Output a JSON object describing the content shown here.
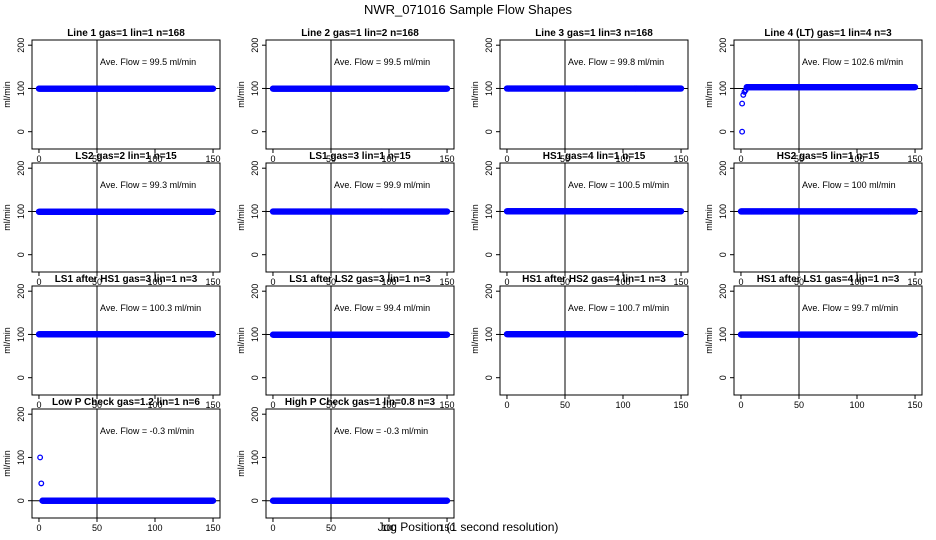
{
  "figure": {
    "title": "NWR_071016  Sample Flow Shapes",
    "xlabel": "Jog Position (1 second resolution)"
  },
  "colors": {
    "points": "#0000ff",
    "axis": "#000000",
    "background": "#ffffff"
  },
  "chart_data": [
    {
      "type": "scatter",
      "title": "Line 1 gas=1 lin=1 n=168",
      "ylabel": "ml/min",
      "annotation": "Ave. Flow = 99.5  ml/min",
      "xlim": [
        0,
        150
      ],
      "ylim": [
        0,
        200
      ],
      "xticks": [
        0,
        50,
        100,
        150
      ],
      "yticks": [
        0,
        100,
        200
      ],
      "vline": 50,
      "hline": 100,
      "x_range": [
        0,
        150
      ],
      "y_level": 99.5,
      "lead_points": []
    },
    {
      "type": "scatter",
      "title": "Line 2 gas=1 lin=2 n=168",
      "ylabel": "ml/min",
      "annotation": "Ave. Flow = 99.5  ml/min",
      "xlim": [
        0,
        150
      ],
      "ylim": [
        0,
        200
      ],
      "xticks": [
        0,
        50,
        100,
        150
      ],
      "yticks": [
        0,
        100,
        200
      ],
      "vline": 50,
      "hline": 100,
      "x_range": [
        0,
        150
      ],
      "y_level": 99.5,
      "lead_points": []
    },
    {
      "type": "scatter",
      "title": "Line 3 gas=1 lin=3 n=168",
      "ylabel": "ml/min",
      "annotation": "Ave. Flow = 99.8  ml/min",
      "xlim": [
        0,
        150
      ],
      "ylim": [
        0,
        200
      ],
      "xticks": [
        0,
        50,
        100,
        150
      ],
      "yticks": [
        0,
        100,
        200
      ],
      "vline": 50,
      "hline": 100,
      "x_range": [
        0,
        150
      ],
      "y_level": 99.8,
      "lead_points": []
    },
    {
      "type": "scatter",
      "title": "Line 4 (LT) gas=1 lin=4 n=3",
      "ylabel": "ml/min",
      "annotation": "Ave. Flow = 102.6  ml/min",
      "xlim": [
        0,
        150
      ],
      "ylim": [
        0,
        200
      ],
      "xticks": [
        0,
        50,
        100,
        150
      ],
      "yticks": [
        0,
        100,
        200
      ],
      "vline": 50,
      "hline": 100,
      "x_range": [
        5,
        150
      ],
      "y_level": 103,
      "lead_points": [
        [
          1,
          0
        ],
        [
          1,
          65
        ],
        [
          2,
          85
        ],
        [
          3,
          92
        ],
        [
          4,
          96
        ]
      ]
    },
    {
      "type": "scatter",
      "title": "LS2 gas=2 lin=1 n=15",
      "ylabel": "ml/min",
      "annotation": "Ave. Flow = 99.3  ml/min",
      "xlim": [
        0,
        150
      ],
      "ylim": [
        0,
        200
      ],
      "xticks": [
        0,
        50,
        100,
        150
      ],
      "yticks": [
        0,
        100,
        200
      ],
      "vline": 50,
      "hline": 100,
      "x_range": [
        0,
        150
      ],
      "y_level": 99.3,
      "lead_points": []
    },
    {
      "type": "scatter",
      "title": "LS1 gas=3 lin=1 n=15",
      "ylabel": "ml/min",
      "annotation": "Ave. Flow = 99.9  ml/min",
      "xlim": [
        0,
        150
      ],
      "ylim": [
        0,
        200
      ],
      "xticks": [
        0,
        50,
        100,
        150
      ],
      "yticks": [
        0,
        100,
        200
      ],
      "vline": 50,
      "hline": 100,
      "x_range": [
        0,
        150
      ],
      "y_level": 99.9,
      "lead_points": []
    },
    {
      "type": "scatter",
      "title": "HS1 gas=4 lin=1 n=15",
      "ylabel": "ml/min",
      "annotation": "Ave. Flow = 100.5  ml/min",
      "xlim": [
        0,
        150
      ],
      "ylim": [
        0,
        200
      ],
      "xticks": [
        0,
        50,
        100,
        150
      ],
      "yticks": [
        0,
        100,
        200
      ],
      "vline": 50,
      "hline": 100,
      "x_range": [
        0,
        150
      ],
      "y_level": 100.5,
      "lead_points": []
    },
    {
      "type": "scatter",
      "title": "HS2 gas=5 lin=1 n=15",
      "ylabel": "ml/min",
      "annotation": "Ave. Flow = 100  ml/min",
      "xlim": [
        0,
        150
      ],
      "ylim": [
        0,
        200
      ],
      "xticks": [
        0,
        50,
        100,
        150
      ],
      "yticks": [
        0,
        100,
        200
      ],
      "vline": 50,
      "hline": 100,
      "x_range": [
        0,
        150
      ],
      "y_level": 100,
      "lead_points": []
    },
    {
      "type": "scatter",
      "title": "LS1 after HS1 gas=3 lin=1 n=3",
      "ylabel": "ml/min",
      "annotation": "Ave. Flow = 100.3  ml/min",
      "xlim": [
        0,
        150
      ],
      "ylim": [
        0,
        200
      ],
      "xticks": [
        0,
        50,
        100,
        150
      ],
      "yticks": [
        0,
        100,
        200
      ],
      "vline": 50,
      "hline": 100,
      "x_range": [
        0,
        150
      ],
      "y_level": 100.3,
      "lead_points": []
    },
    {
      "type": "scatter",
      "title": "LS1 after LS2 gas=3 lin=1 n=3",
      "ylabel": "ml/min",
      "annotation": "Ave. Flow = 99.4  ml/min",
      "xlim": [
        0,
        150
      ],
      "ylim": [
        0,
        200
      ],
      "xticks": [
        0,
        50,
        100,
        150
      ],
      "yticks": [
        0,
        100,
        200
      ],
      "vline": 50,
      "hline": 100,
      "x_range": [
        0,
        150
      ],
      "y_level": 99.4,
      "lead_points": []
    },
    {
      "type": "scatter",
      "title": "HS1 after HS2 gas=4 lin=1 n=3",
      "ylabel": "ml/min",
      "annotation": "Ave. Flow = 100.7  ml/min",
      "xlim": [
        0,
        150
      ],
      "ylim": [
        0,
        200
      ],
      "xticks": [
        0,
        50,
        100,
        150
      ],
      "yticks": [
        0,
        100,
        200
      ],
      "vline": 50,
      "hline": 100,
      "x_range": [
        0,
        150
      ],
      "y_level": 100.7,
      "lead_points": []
    },
    {
      "type": "scatter",
      "title": "HS1 after LS1 gas=4 lin=1 n=3",
      "ylabel": "ml/min",
      "annotation": "Ave. Flow = 99.7  ml/min",
      "xlim": [
        0,
        150
      ],
      "ylim": [
        0,
        200
      ],
      "xticks": [
        0,
        50,
        100,
        150
      ],
      "yticks": [
        0,
        100,
        200
      ],
      "vline": 50,
      "hline": 100,
      "x_range": [
        0,
        150
      ],
      "y_level": 99.7,
      "lead_points": []
    },
    {
      "type": "scatter",
      "title": "Low P Check gas=1.2 lin=1 n=6",
      "ylabel": "ml/min",
      "annotation": "Ave. Flow = -0.3  ml/min",
      "xlim": [
        0,
        150
      ],
      "ylim": [
        0,
        200
      ],
      "xticks": [
        0,
        50,
        100,
        150
      ],
      "yticks": [
        0,
        100,
        200
      ],
      "vline": 50,
      "hline": 0,
      "x_range": [
        3,
        150
      ],
      "y_level": 0,
      "lead_points": [
        [
          1,
          100
        ],
        [
          2,
          40
        ]
      ]
    },
    {
      "type": "scatter",
      "title": "High P Check gas=1 lin=0.8 n=3",
      "ylabel": "ml/min",
      "annotation": "Ave. Flow = -0.3  ml/min",
      "xlim": [
        0,
        150
      ],
      "ylim": [
        0,
        200
      ],
      "xticks": [
        0,
        50,
        100,
        150
      ],
      "yticks": [
        0,
        100,
        200
      ],
      "vline": 50,
      "hline": 0,
      "x_range": [
        0,
        150
      ],
      "y_level": 0,
      "lead_points": []
    }
  ]
}
